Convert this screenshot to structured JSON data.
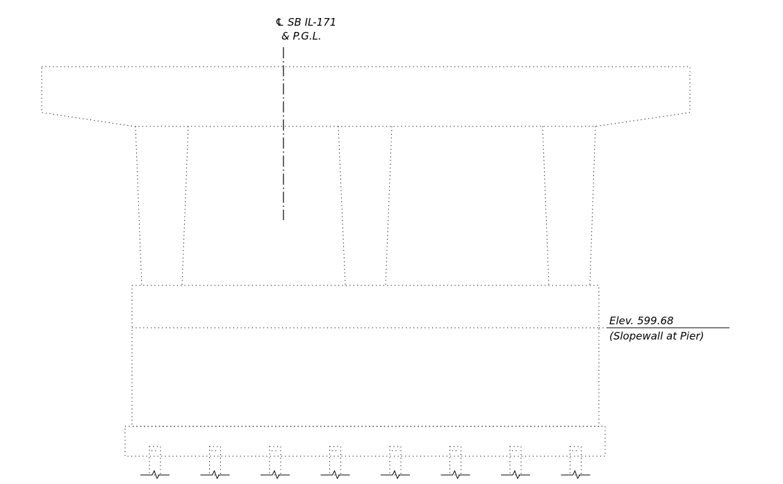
{
  "centerline": {
    "symbol": "℄",
    "line1": "SB IL-171",
    "line2": "& P.G.L."
  },
  "elevation": {
    "label": "Elev. 599.68",
    "note": "(Slopewall at Pier)"
  },
  "pile_count": 8
}
